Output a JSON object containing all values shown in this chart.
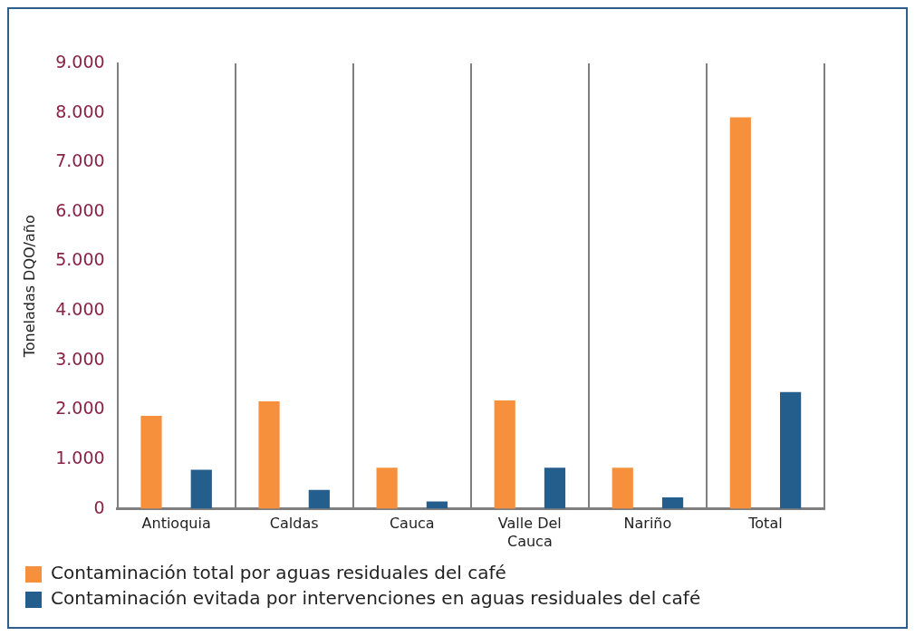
{
  "chart_data": {
    "type": "bar",
    "ylabel": "Toneladas DQO/año",
    "categories": [
      "Antioquia",
      "Caldas",
      "Cauca",
      "Valle Del Cauca",
      "Nariño",
      "Total"
    ],
    "series": [
      {
        "name": "Contaminación total por aguas residuales del café",
        "color": "#f6903d",
        "values": [
          1880,
          2170,
          830,
          2190,
          830,
          7910
        ]
      },
      {
        "name": "Contaminación evitada por intervenciones en aguas residuales del café",
        "color": "#245e8c",
        "values": [
          790,
          380,
          150,
          830,
          230,
          2360
        ]
      }
    ],
    "ylim": [
      0,
      9000
    ],
    "yticks": [
      {
        "value": 0,
        "label": "0"
      },
      {
        "value": 1000,
        "label": "1.000"
      },
      {
        "value": 2000,
        "label": "2.000"
      },
      {
        "value": 3000,
        "label": "3.000"
      },
      {
        "value": 4000,
        "label": "4.000"
      },
      {
        "value": 5000,
        "label": "5.000"
      },
      {
        "value": 6000,
        "label": "6.000"
      },
      {
        "value": 7000,
        "label": "7.000"
      },
      {
        "value": 8000,
        "label": "8.000"
      },
      {
        "value": 9000,
        "label": "9.000"
      }
    ],
    "grid": "x",
    "legend": "bottom left"
  }
}
